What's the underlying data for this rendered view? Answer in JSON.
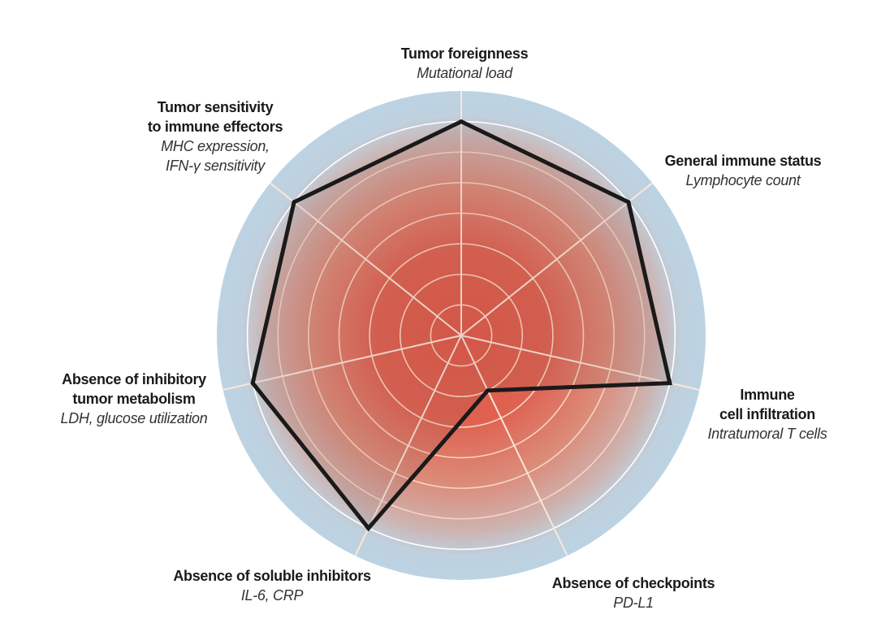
{
  "chart_data": {
    "type": "radar",
    "rlim": [
      0,
      8
    ],
    "grid": true,
    "ring_count": 8,
    "colors": {
      "center": "#e05a48",
      "outer": "#bcd3e3",
      "outline": "#1a1a1a",
      "grid": "#ffffff"
    },
    "axes": [
      {
        "title": "Tumor foreignness",
        "subtitle": [
          "Mutational load"
        ],
        "value": 7
      },
      {
        "title": "General immune status",
        "subtitle": [
          "Lymphocyte count"
        ],
        "value": 7
      },
      {
        "title": [
          "Immune",
          "cell infiltration"
        ],
        "subtitle": [
          "Intratumoral T cells"
        ],
        "value": 7
      },
      {
        "title": "Absence of checkpoints",
        "subtitle": [
          "PD-L1"
        ],
        "value": 2
      },
      {
        "title": "Absence of soluble inhibitors",
        "subtitle": [
          "IL-6, CRP"
        ],
        "value": 7
      },
      {
        "title": [
          "Absence of inhibitory",
          "tumor metabolism"
        ],
        "subtitle": [
          "LDH, glucose utilization"
        ],
        "value": 7
      },
      {
        "title": [
          "Tumor sensitivity",
          "to immune effectors"
        ],
        "subtitle": [
          "MHC expression,",
          "IFN-γ sensitivity"
        ],
        "value": 7
      }
    ]
  }
}
